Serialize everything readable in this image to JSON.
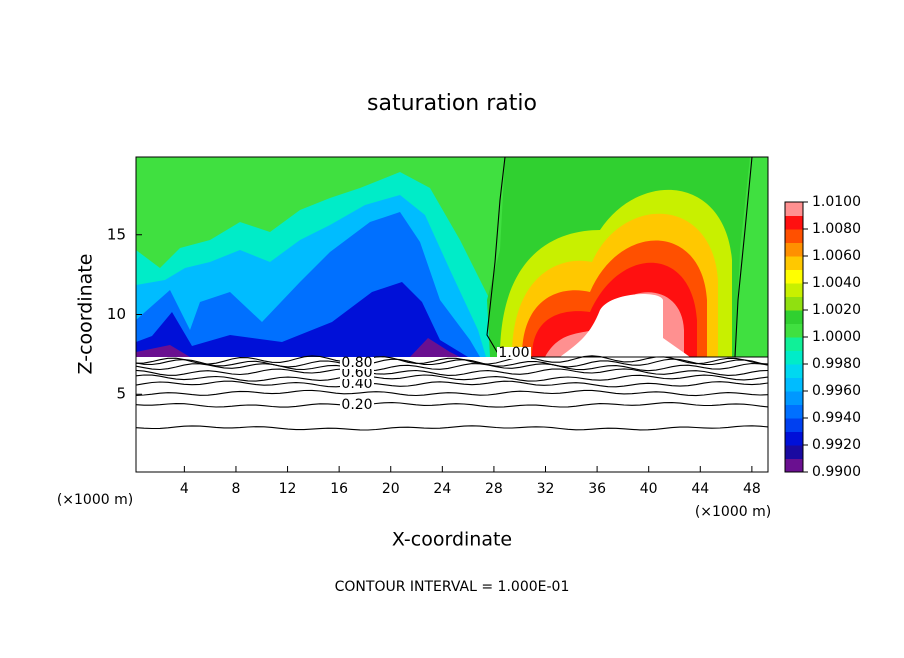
{
  "chart_data": {
    "type": "contour",
    "title": "saturation ratio",
    "x_label": "X-coordinate",
    "y_label": "Z-coordinate",
    "x_unit": "(×1000 m)",
    "footer": "CONTOUR INTERVAL = 1.000E-01",
    "xlim": [
      0.25,
      49.25
    ],
    "xticks": [
      4,
      8,
      12,
      16,
      20,
      24,
      28,
      32,
      36,
      40,
      44,
      48
    ],
    "ylim": [
      0.125,
      19.875
    ],
    "yticks": [
      5,
      10,
      15
    ],
    "colorbar": {
      "lim": [
        0.99,
        1.01
      ],
      "ticks": [
        {
          "value": 0.99,
          "label": "0.9900"
        },
        {
          "value": 0.992,
          "label": "0.9920"
        },
        {
          "value": 0.994,
          "label": "0.9940"
        },
        {
          "value": 0.996,
          "label": "0.9960"
        },
        {
          "value": 0.998,
          "label": "0.9980"
        },
        {
          "value": 1.0,
          "label": "1.0000"
        },
        {
          "value": 1.002,
          "label": "1.0020"
        },
        {
          "value": 1.004,
          "label": "1.0040"
        },
        {
          "value": 1.006,
          "label": "1.0060"
        },
        {
          "value": 1.008,
          "label": "1.0080"
        },
        {
          "value": 1.01,
          "label": "1.0100"
        }
      ],
      "colors": [
        "#6a1090",
        "#1a0aa0",
        "#0010d8",
        "#0040f0",
        "#0070ff",
        "#0098ff",
        "#00bcff",
        "#00d8f0",
        "#00ecc8",
        "#10f098",
        "#40e040",
        "#30d030",
        "#90e010",
        "#c8f000",
        "#ffff00",
        "#ffc800",
        "#ff9000",
        "#ff5000",
        "#ff1010",
        "#ff9090"
      ]
    },
    "contours": {
      "levels": [
        0.1,
        0.2,
        0.3,
        0.4,
        0.5,
        0.6,
        0.7,
        0.8,
        0.9,
        1.0
      ],
      "value_labels": [
        null,
        "0.20",
        null,
        "0.40",
        null,
        "0.60",
        null,
        "0.80",
        null,
        "1.00"
      ]
    }
  }
}
